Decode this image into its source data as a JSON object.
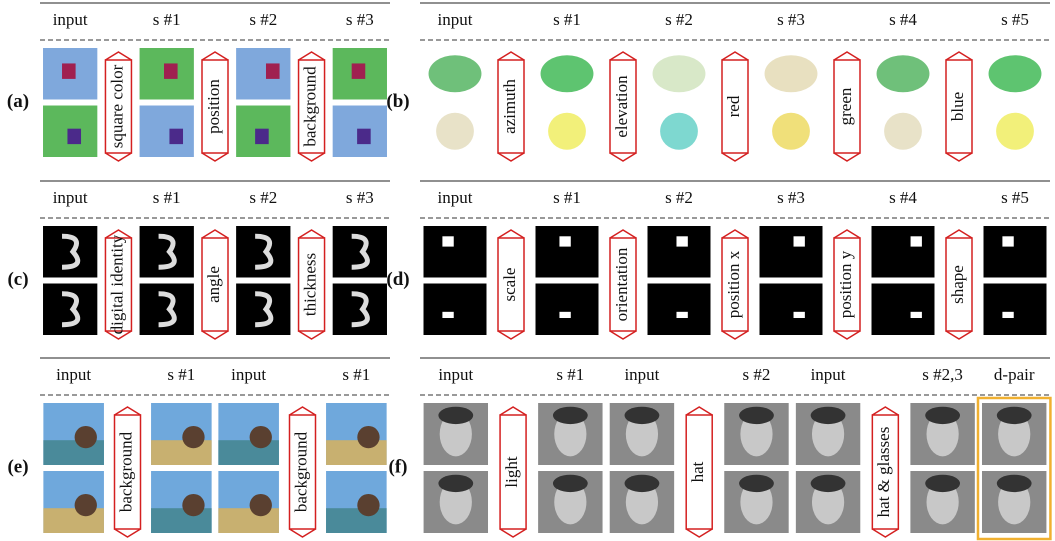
{
  "panels": [
    {
      "label": "(a)",
      "headers": [
        "input",
        "s #1",
        "s #2",
        "s #3"
      ],
      "swaps": [
        "square color",
        "position",
        "background"
      ]
    },
    {
      "label": "(b)",
      "headers": [
        "input",
        "s #1",
        "s #2",
        "s #3",
        "s #4",
        "s #5"
      ],
      "swaps": [
        "azimuth",
        "elevation",
        "red",
        "green",
        "blue"
      ]
    },
    {
      "label": "(c)",
      "headers": [
        "input",
        "s #1",
        "s #2",
        "s #3"
      ],
      "swaps": [
        "digital identity",
        "angle",
        "thickness"
      ]
    },
    {
      "label": "(d)",
      "headers": [
        "input",
        "s #1",
        "s #2",
        "s #3",
        "s #4",
        "s #5"
      ],
      "swaps": [
        "scale",
        "orientation",
        "position x",
        "position y",
        "shape"
      ]
    },
    {
      "label": "(e)",
      "headers": [
        "input",
        "s #1",
        "input",
        "s #1"
      ],
      "swaps": [
        "background",
        "background"
      ]
    },
    {
      "label": "(f)",
      "headers": [
        "input",
        "s #1",
        "input",
        "s #2",
        "input",
        "s #2,3",
        "d-pair"
      ],
      "swaps": [
        "light",
        "hat",
        "hat & glasses"
      ]
    }
  ]
}
